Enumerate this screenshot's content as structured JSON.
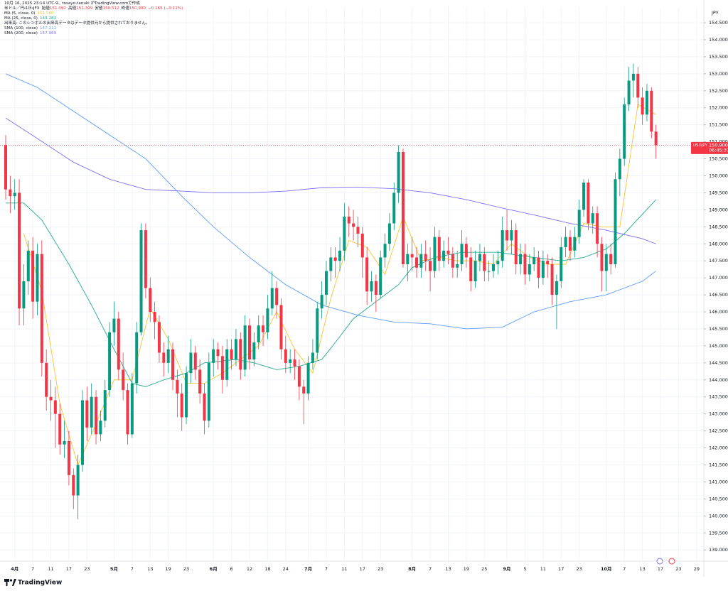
{
  "chart_data": {
    "type": "candlestick",
    "attribution": "10月 16, 2025 23:14 UTC-9、tosayo-tanuki がTradingView.comで作成",
    "title": "米ドル／円・1日・JFX",
    "ohlc_legend": [
      {
        "label": "始値",
        "value": "151.092"
      },
      {
        "label": "高値",
        "value": "151.399"
      },
      {
        "label": "安値",
        "value": "150.512"
      },
      {
        "label": "終値",
        "value": "150.900"
      }
    ],
    "change": "−0.165 (−0.11%)",
    "volume_note": "出来高: このシンボルの出来高データはデータ提供元から提供されておりません。",
    "currency": "JPY",
    "brand": "TradingView",
    "up_color": "#089981",
    "down_color": "#f23645",
    "grid": true,
    "open": [
      150.9,
      149.6,
      149.4,
      149.5,
      146.1,
      146.9,
      147.8,
      146.3,
      147.7,
      144.5,
      143.5,
      143.4,
      143.0,
      142.1,
      142.2,
      141.2,
      140.6,
      141.5,
      143.4,
      142.6,
      143.5,
      142.4,
      142.8,
      143.7,
      145.4,
      145.8,
      144.3,
      143.7,
      142.4,
      143.9,
      145.4,
      148.4,
      146.7,
      146.0,
      145.7,
      144.8,
      144.5,
      144.9,
      144.0,
      143.6,
      142.9,
      144.2,
      144.8,
      144.3,
      143.6,
      142.8,
      144.5,
      144.9,
      144.7,
      144.0,
      144.9,
      144.6,
      145.2,
      144.3,
      145.6,
      144.6,
      145.1,
      145.6,
      145.4,
      146.1,
      146.7,
      146.2,
      144.9,
      144.5,
      144.6,
      144.4,
      143.8,
      143.6,
      144.5,
      144.8,
      146.1,
      146.5,
      147.2,
      147.6,
      147.5,
      147.8,
      148.8,
      148.6,
      148.5,
      148.3,
      147.6,
      146.6,
      146.9,
      146.5,
      147.6,
      148.0,
      148.6,
      149.5,
      150.7,
      147.4,
      147.7,
      147.6,
      147.3,
      147.7,
      147.5,
      147.2,
      148.2,
      147.5,
      147.8,
      147.7,
      147.3,
      147.4,
      148.0,
      147.6,
      146.9,
      147.5,
      147.7,
      147.2,
      147.2,
      147.4,
      147.5,
      148.4,
      148.1,
      148.4,
      147.4,
      147.7,
      147.1,
      147.4,
      147.6,
      147.0,
      147.5,
      147.4,
      146.5,
      146.9,
      147.9,
      148.2,
      147.8,
      148.2,
      149.0,
      149.8,
      148.6,
      148.9,
      148.0,
      147.2,
      147.7,
      147.4,
      149.9,
      150.5,
      152.1,
      152.8,
      153.0,
      152.3,
      151.8,
      152.5,
      151.3
    ],
    "high": [
      151.2,
      150.0,
      149.9,
      149.9,
      147.4,
      148.1,
      148.2,
      148.0,
      148.1,
      144.9,
      144.0,
      143.8,
      143.3,
      142.8,
      142.5,
      141.4,
      141.8,
      143.7,
      143.8,
      143.9,
      143.7,
      143.1,
      144.0,
      145.7,
      146.3,
      146.0,
      144.8,
      143.9,
      144.2,
      145.7,
      148.6,
      148.6,
      147.0,
      146.3,
      145.9,
      145.1,
      145.3,
      145.1,
      144.3,
      143.9,
      144.4,
      145.2,
      145.0,
      144.6,
      143.9,
      144.8,
      145.2,
      145.1,
      145.0,
      145.2,
      145.2,
      145.5,
      145.4,
      145.9,
      145.8,
      145.4,
      145.9,
      145.9,
      146.5,
      147.2,
      146.9,
      146.4,
      145.3,
      144.9,
      144.9,
      144.6,
      144.0,
      144.7,
      145.2,
      146.3,
      146.9,
      147.5,
      147.9,
      147.9,
      148.2,
      149.2,
      149.1,
      149.0,
      148.8,
      148.5,
      147.9,
      147.2,
      147.1,
      147.8,
      148.3,
      148.9,
      149.8,
      150.9,
      150.8,
      148.0,
      148.2,
      147.9,
      148.0,
      148.1,
      147.9,
      148.5,
      148.4,
      148.1,
      148.2,
      147.9,
      147.8,
      148.4,
      148.2,
      147.9,
      147.8,
      148.0,
      147.9,
      147.5,
      147.7,
      147.8,
      148.8,
      149.0,
      148.7,
      148.6,
      148.0,
      148.0,
      147.7,
      147.9,
      147.8,
      147.8,
      147.7,
      147.6,
      147.1,
      148.2,
      148.5,
      148.4,
      148.5,
      149.3,
      149.9,
      149.9,
      149.1,
      149.1,
      148.2,
      148.0,
      148.0,
      150.1,
      150.8,
      152.3,
      153.2,
      153.3,
      153.2,
      152.6,
      152.7,
      152.6,
      151.5
    ],
    "low": [
      149.3,
      148.9,
      149.0,
      145.6,
      145.6,
      146.5,
      145.8,
      145.9,
      144.1,
      143.1,
      142.8,
      142.0,
      141.8,
      141.7,
      140.9,
      140.2,
      139.9,
      141.3,
      142.2,
      142.4,
      142.1,
      142.2,
      142.6,
      143.5,
      145.0,
      144.0,
      143.4,
      142.1,
      142.3,
      143.6,
      145.3,
      146.4,
      145.7,
      145.2,
      144.5,
      144.1,
      144.2,
      143.7,
      142.9,
      142.5,
      142.7,
      143.9,
      144.0,
      143.3,
      142.4,
      142.6,
      144.1,
      144.3,
      143.6,
      143.8,
      144.3,
      144.4,
      144.0,
      144.1,
      144.3,
      144.4,
      144.9,
      145.0,
      145.2,
      145.9,
      145.8,
      144.6,
      144.2,
      144.2,
      144.0,
      143.4,
      142.7,
      143.4,
      144.3,
      144.6,
      145.8,
      146.2,
      146.9,
      147.0,
      147.2,
      147.5,
      148.2,
      148.1,
      147.9,
      147.0,
      146.2,
      146.3,
      146.0,
      146.4,
      147.3,
      147.8,
      148.4,
      149.2,
      147.3,
      146.9,
      147.2,
      147.0,
      147.0,
      147.2,
      146.6,
      147.0,
      147.2,
      147.3,
      147.4,
      147.0,
      147.0,
      147.2,
      147.3,
      146.6,
      146.7,
      147.2,
      146.9,
      146.9,
      147.0,
      147.1,
      147.3,
      147.8,
      147.7,
      147.1,
      147.1,
      146.8,
      146.9,
      147.2,
      146.7,
      146.8,
      147.0,
      146.2,
      145.5,
      146.7,
      147.6,
      147.5,
      147.6,
      148.0,
      148.8,
      148.4,
      148.3,
      147.6,
      146.6,
      146.6,
      147.1,
      147.3,
      149.4,
      150.3,
      151.9,
      152.3,
      152.0,
      151.5,
      151.6,
      151.1,
      150.5
    ],
    "close": [
      149.6,
      149.4,
      149.5,
      146.1,
      146.9,
      147.8,
      146.3,
      147.7,
      144.5,
      143.5,
      143.4,
      143.0,
      142.1,
      142.2,
      141.2,
      140.6,
      141.5,
      143.4,
      142.6,
      143.5,
      142.4,
      142.8,
      143.7,
      145.4,
      145.8,
      144.3,
      143.7,
      142.4,
      143.9,
      145.4,
      148.4,
      146.7,
      146.0,
      145.7,
      144.8,
      144.5,
      144.9,
      144.0,
      143.6,
      142.9,
      144.2,
      144.8,
      144.3,
      143.6,
      142.8,
      144.5,
      144.9,
      144.7,
      144.0,
      144.9,
      144.6,
      145.2,
      144.3,
      145.6,
      144.6,
      145.1,
      145.6,
      145.4,
      146.1,
      146.7,
      146.2,
      144.9,
      144.5,
      144.6,
      144.4,
      143.8,
      143.6,
      144.5,
      144.8,
      146.1,
      146.5,
      147.2,
      147.6,
      147.5,
      147.8,
      148.8,
      148.6,
      148.5,
      148.3,
      147.6,
      146.6,
      146.9,
      146.5,
      147.6,
      148.0,
      148.6,
      149.5,
      150.7,
      147.4,
      147.7,
      147.6,
      147.3,
      147.7,
      147.5,
      147.2,
      148.2,
      147.5,
      147.8,
      147.7,
      147.3,
      147.4,
      148.0,
      147.6,
      146.9,
      147.5,
      147.7,
      147.2,
      147.2,
      147.4,
      147.5,
      148.4,
      148.1,
      148.4,
      147.4,
      147.7,
      147.1,
      147.4,
      147.6,
      147.0,
      147.5,
      147.4,
      146.5,
      146.9,
      147.9,
      148.2,
      147.8,
      148.2,
      149.0,
      149.8,
      148.6,
      148.9,
      148.0,
      147.2,
      147.7,
      147.4,
      149.9,
      150.5,
      152.1,
      152.8,
      153.0,
      152.3,
      151.8,
      152.5,
      151.3,
      150.9
    ],
    "series": [
      {
        "name": "MA (5, close, 0)",
        "value_label": "151.560",
        "color": "#f7c531",
        "x": [
          4,
          8,
          12,
          16,
          20,
          24,
          28,
          32,
          36,
          40,
          44,
          48,
          52,
          56,
          60,
          64,
          68,
          72,
          76,
          80,
          84,
          88,
          92,
          96,
          100,
          104,
          108,
          112,
          116,
          120,
          124,
          128,
          132,
          136,
          140,
          144
        ],
        "values": [
          148.3,
          146.6,
          143.3,
          141.5,
          142.7,
          144.0,
          144.0,
          146.1,
          145.2,
          143.9,
          143.9,
          144.2,
          144.6,
          145.0,
          146.0,
          144.9,
          144.2,
          146.4,
          148.1,
          147.9,
          147.1,
          148.8,
          147.5,
          147.6,
          147.5,
          147.5,
          147.4,
          148.0,
          147.6,
          147.4,
          147.4,
          148.6,
          148.5,
          148.5,
          152.1,
          151.8
        ]
      },
      {
        "name": "MA (25, close, 0)",
        "value_label": "149.283",
        "color": "#22ab94",
        "x": [
          0,
          4,
          8,
          14,
          19,
          24,
          28,
          31,
          35,
          40,
          44,
          51,
          55,
          60,
          65,
          70,
          73,
          77,
          82,
          87,
          90,
          95,
          101,
          109,
          117,
          123,
          128,
          133,
          137,
          144
        ],
        "values": [
          149.2,
          149.2,
          148.7,
          147.4,
          146.2,
          144.9,
          143.9,
          143.8,
          144.0,
          144.2,
          144.5,
          144.6,
          144.5,
          144.3,
          144.4,
          144.6,
          145.1,
          145.8,
          146.3,
          146.8,
          147.3,
          147.6,
          147.75,
          147.75,
          147.6,
          147.5,
          147.6,
          147.85,
          148.3,
          149.3
        ]
      },
      {
        "name": "SMA (100, close)",
        "value_label": "147.212",
        "color": "#5b9cf6",
        "x": [
          0,
          7,
          15,
          23,
          31,
          39,
          46,
          54,
          62,
          70,
          78,
          86,
          94,
          102,
          110,
          117,
          125,
          133,
          141,
          144
        ],
        "values": [
          153.0,
          152.6,
          151.9,
          151.2,
          150.5,
          149.4,
          148.5,
          147.6,
          146.8,
          146.2,
          145.9,
          145.7,
          145.65,
          145.5,
          145.55,
          146.0,
          146.3,
          146.5,
          146.9,
          147.2
        ]
      },
      {
        "name": "SMA (200, close)",
        "value_label": "147.969",
        "color": "#7e6ff0",
        "x": [
          0,
          7,
          15,
          23,
          31,
          39,
          46,
          54,
          62,
          70,
          78,
          86,
          94,
          102,
          110,
          117,
          125,
          133,
          141,
          144
        ],
        "values": [
          151.7,
          151.1,
          150.4,
          149.9,
          149.6,
          149.55,
          149.5,
          149.5,
          149.55,
          149.65,
          149.67,
          149.62,
          149.5,
          149.3,
          149.05,
          148.85,
          148.6,
          148.4,
          148.15,
          148.0
        ]
      }
    ],
    "price_tag": {
      "symbol": "USDJPY",
      "value": 150.9,
      "label": "150.900",
      "countdown": "06:45:37",
      "color": "#f23645"
    },
    "ylim": [
      138.67,
      154.96
    ],
    "yticks": [
      {
        "value": 139,
        "label": "139.000"
      },
      {
        "value": 139.5,
        "label": "139.500"
      },
      {
        "value": 140,
        "label": "140.000"
      },
      {
        "value": 140.5,
        "label": "140.500"
      },
      {
        "value": 141,
        "label": "141.000"
      },
      {
        "value": 141.5,
        "label": "141.500"
      },
      {
        "value": 142,
        "label": "142.000"
      },
      {
        "value": 142.5,
        "label": "142.500"
      },
      {
        "value": 143,
        "label": "143.000"
      },
      {
        "value": 143.5,
        "label": "143.500"
      },
      {
        "value": 144,
        "label": "144.000"
      },
      {
        "value": 144.5,
        "label": "144.500"
      },
      {
        "value": 145,
        "label": "145.000"
      },
      {
        "value": 145.5,
        "label": "145.500"
      },
      {
        "value": 146,
        "label": "146.000"
      },
      {
        "value": 146.5,
        "label": "146.500"
      },
      {
        "value": 147,
        "label": "147.000"
      },
      {
        "value": 147.5,
        "label": "147.500"
      },
      {
        "value": 148,
        "label": "148.000"
      },
      {
        "value": 148.5,
        "label": "148.500"
      },
      {
        "value": 149,
        "label": "149.000"
      },
      {
        "value": 149.5,
        "label": "149.500"
      },
      {
        "value": 150,
        "label": "150.000"
      },
      {
        "value": 150.5,
        "label": "150.500"
      },
      {
        "value": 151,
        "label": "151.000"
      },
      {
        "value": 151.5,
        "label": "151.500"
      },
      {
        "value": 152,
        "label": "152.000"
      },
      {
        "value": 152.5,
        "label": "152.500"
      },
      {
        "value": 153,
        "label": "153.000"
      },
      {
        "value": 153.5,
        "label": "153.500"
      },
      {
        "value": 154,
        "label": "154.000"
      },
      {
        "value": 154.5,
        "label": "154.500"
      }
    ],
    "xlim": [
      -1.26,
      154.6
    ],
    "xticks": [
      {
        "value": 2,
        "label": "4月"
      },
      {
        "value": 6,
        "label": "7"
      },
      {
        "value": 10,
        "label": "11"
      },
      {
        "value": 14,
        "label": "17"
      },
      {
        "value": 18,
        "label": "23"
      },
      {
        "value": 24,
        "label": "5月"
      },
      {
        "value": 28,
        "label": "7"
      },
      {
        "value": 32,
        "label": "13"
      },
      {
        "value": 36,
        "label": "19"
      },
      {
        "value": 40,
        "label": "23"
      },
      {
        "value": 46,
        "label": "6月"
      },
      {
        "value": 50,
        "label": "6"
      },
      {
        "value": 54,
        "label": "12"
      },
      {
        "value": 58,
        "label": "18"
      },
      {
        "value": 62,
        "label": "24"
      },
      {
        "value": 67,
        "label": "7月"
      },
      {
        "value": 71,
        "label": "7"
      },
      {
        "value": 75,
        "label": "11"
      },
      {
        "value": 79,
        "label": "17"
      },
      {
        "value": 83,
        "label": "23"
      },
      {
        "value": 90,
        "label": "8月"
      },
      {
        "value": 94,
        "label": "7"
      },
      {
        "value": 98,
        "label": "13"
      },
      {
        "value": 102,
        "label": "19"
      },
      {
        "value": 106,
        "label": "25"
      },
      {
        "value": 111,
        "label": "9月"
      },
      {
        "value": 115,
        "label": "5"
      },
      {
        "value": 119,
        "label": "11"
      },
      {
        "value": 123,
        "label": "17"
      },
      {
        "value": 127,
        "label": "23"
      },
      {
        "value": 133,
        "label": "10月"
      },
      {
        "value": 137,
        "label": "7"
      },
      {
        "value": 141,
        "label": "13"
      },
      {
        "value": 145,
        "label": "17"
      },
      {
        "value": 149,
        "label": "23"
      },
      {
        "value": 153,
        "label": "29"
      }
    ]
  }
}
